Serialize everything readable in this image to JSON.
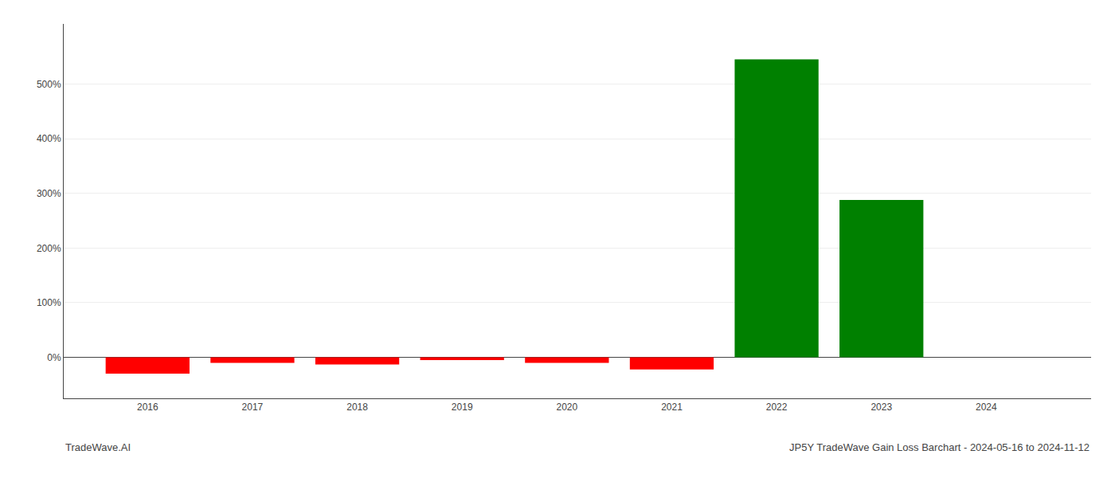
{
  "chart_data": {
    "type": "bar",
    "x": [
      2016,
      2017,
      2018,
      2019,
      2020,
      2021,
      2022,
      2023,
      2024
    ],
    "values": [
      -30.0,
      -10.0,
      -13.0,
      -5.0,
      -10.0,
      -22.0,
      545.0,
      288.0,
      0.0
    ],
    "colors": [
      "#ff0000",
      "#ff0000",
      "#ff0000",
      "#ff0000",
      "#ff0000",
      "#ff0000",
      "#008000",
      "#008000",
      "#008000"
    ],
    "xlim": [
      2015.2,
      2025.0
    ],
    "xticks": [
      2016,
      2017,
      2018,
      2019,
      2020,
      2021,
      2022,
      2023,
      2024
    ],
    "ylim": [
      -75,
      610
    ],
    "yticks": [
      {
        "value": 0,
        "label": "0%"
      },
      {
        "value": 100,
        "label": "100%"
      },
      {
        "value": 200,
        "label": "200%"
      },
      {
        "value": 300,
        "label": "300%"
      },
      {
        "value": 400,
        "label": "400%"
      },
      {
        "value": 500,
        "label": "500%"
      }
    ],
    "grid": true,
    "annotations": [
      "TradeWave.AI",
      "JP5Y TradeWave Gain Loss Barchart - 2024-05-16 to 2024-11-12"
    ]
  }
}
